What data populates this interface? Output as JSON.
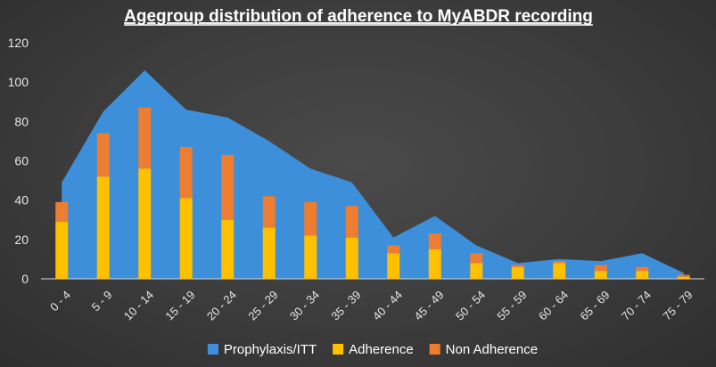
{
  "chart_data": {
    "type": "bar",
    "title": "Agegroup distribution of adherence to MyABDR recording",
    "xlabel": "",
    "ylabel": "",
    "ylim": [
      0,
      120
    ],
    "yticks": [
      0,
      20,
      40,
      60,
      80,
      100,
      120
    ],
    "grid": false,
    "legend_position": "bottom",
    "categories": [
      "0 - 4",
      "5 - 9",
      "10 - 14",
      "15 - 19",
      "20 - 24",
      "25 - 29",
      "30 - 34",
      "35 - 39",
      "40 - 44",
      "45 - 49",
      "50 - 54",
      "55 - 59",
      "60 - 64",
      "65 - 69",
      "70 - 74",
      "75 - 79"
    ],
    "series": [
      {
        "name": "Prophylaxis/ITT",
        "kind": "area",
        "color": "#3d8fd9",
        "values": [
          49,
          85,
          106,
          86,
          82,
          70,
          56,
          49,
          21,
          32,
          17,
          8,
          10,
          9,
          13,
          3
        ]
      },
      {
        "name": "Adherence",
        "kind": "stacked-bar",
        "color": "#ffc000",
        "values": [
          29,
          52,
          56,
          41,
          30,
          26,
          22,
          21,
          13,
          15,
          8,
          6,
          8,
          4,
          4,
          1
        ]
      },
      {
        "name": "Non Adherence",
        "kind": "stacked-bar",
        "color": "#ed7d31",
        "values": [
          10,
          22,
          31,
          26,
          33,
          16,
          17,
          16,
          4,
          8,
          5,
          1,
          1,
          3,
          2,
          1
        ]
      }
    ]
  }
}
